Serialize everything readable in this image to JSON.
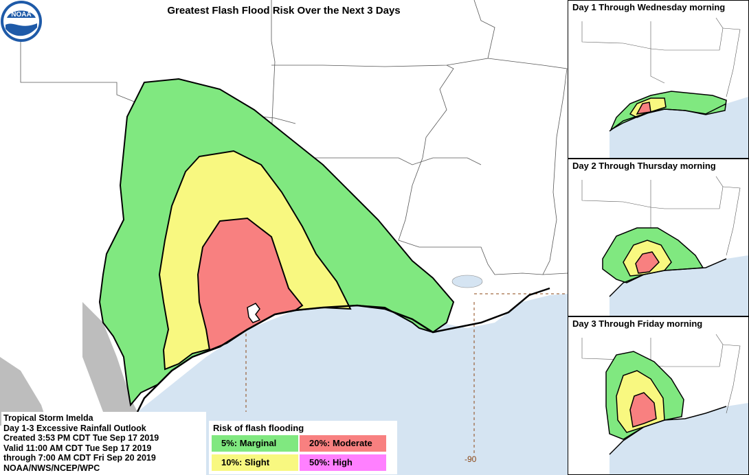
{
  "main": {
    "title": "Greatest Flash Flood Risk Over the Next 3 Days",
    "longitude_label": "-90"
  },
  "insets": [
    {
      "title": "Day 1 Through Wednesday morning"
    },
    {
      "title": "Day 2 Through Thursday morning"
    },
    {
      "title": "Day 3 Through Friday morning"
    }
  ],
  "info": {
    "line1": "Tropical Storm Imelda",
    "line2": "Day 1-3 Excessive Rainfall Outlook",
    "line3": "Created 3:53 PM CDT Tue Sep 17 2019",
    "line4": "Valid 11:00 AM CDT Tue Sep 17 2019",
    "line5": "through 7:00 AM CDT Fri Sep 20 2019",
    "line6": "NOAA/NWS/NCEP/WPC"
  },
  "legend": {
    "title": "Risk of flash flooding",
    "items": [
      {
        "label": "5%: Marginal",
        "color": "#80e880"
      },
      {
        "label": "20%: Moderate",
        "color": "#f88080"
      },
      {
        "label": "10%: Slight",
        "color": "#f8f880"
      },
      {
        "label": "50%: High",
        "color": "#ff80ff"
      }
    ]
  },
  "colors": {
    "water": "#d5e4f2",
    "land": "#ffffff",
    "marginal": "#80e880",
    "slight": "#f8f880",
    "moderate": "#f88080",
    "mexico": "#bdbdbd"
  },
  "logo": {
    "text": "NOAA"
  }
}
